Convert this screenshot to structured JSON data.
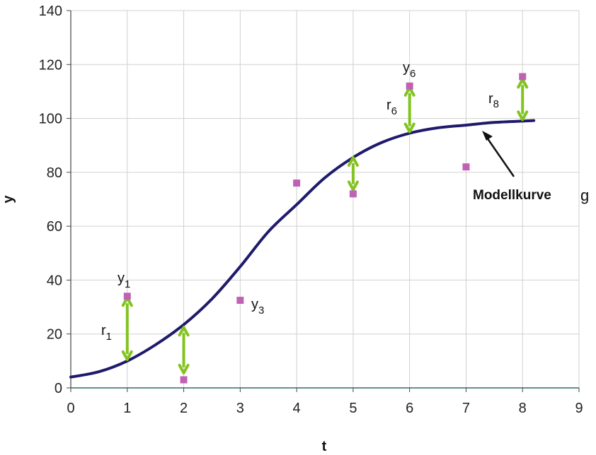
{
  "chart_data": {
    "type": "scatter",
    "xlabel": "t",
    "ylabel": "y",
    "xlim": [
      0,
      9
    ],
    "ylim": [
      0,
      140
    ],
    "xticks": [
      0,
      1,
      2,
      3,
      4,
      5,
      6,
      7,
      8,
      9
    ],
    "yticks": [
      0,
      20,
      40,
      60,
      80,
      100,
      120,
      140
    ],
    "grid": true,
    "series": [
      {
        "kind": "points",
        "color": "#c062b4",
        "x": [
          1,
          2,
          3,
          4,
          5,
          6,
          7,
          8
        ],
        "y": [
          34,
          3,
          32.5,
          76,
          72,
          112,
          82,
          115.5
        ]
      },
      {
        "kind": "curve",
        "color": "#1f1a6b",
        "x": [
          0,
          0.5,
          1,
          1.5,
          2,
          2.5,
          3,
          3.5,
          4,
          4.5,
          5,
          5.5,
          6,
          6.5,
          7,
          7.5,
          8,
          8.2
        ],
        "y": [
          4,
          6,
          10,
          16,
          23.5,
          33,
          45,
          58,
          68,
          78,
          85.5,
          91,
          94.5,
          96.5,
          97.5,
          98.5,
          99,
          99.2
        ]
      }
    ],
    "residuals": {
      "color": "#82c41e",
      "segments": [
        {
          "x": 1,
          "y_from": 10,
          "y_to": 34
        },
        {
          "x": 2,
          "y_from": 23,
          "y_to": 5
        },
        {
          "x": 5,
          "y_from": 86,
          "y_to": 73
        },
        {
          "x": 6,
          "y_from": 94.5,
          "y_to": 112
        },
        {
          "x": 8,
          "y_from": 99,
          "y_to": 115
        }
      ]
    },
    "annotations": [
      {
        "id": "y1",
        "main": "y",
        "sub": "1"
      },
      {
        "id": "r1",
        "main": "r",
        "sub": "1"
      },
      {
        "id": "y3",
        "main": "y",
        "sub": "3"
      },
      {
        "id": "y6",
        "main": "y",
        "sub": "6"
      },
      {
        "id": "r6",
        "main": "r",
        "sub": "6"
      },
      {
        "id": "r8",
        "main": "r",
        "sub": "8"
      }
    ],
    "model_label": "Modellkurve",
    "model_symbol": "g"
  }
}
